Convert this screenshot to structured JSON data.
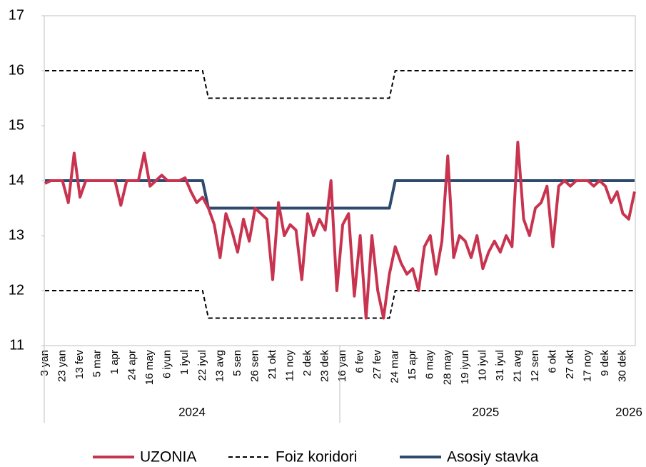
{
  "chart_data": {
    "type": "line",
    "categories": [
      "3 yan",
      null,
      null,
      "23 yan",
      null,
      null,
      "13 fev",
      null,
      null,
      "5 mar",
      null,
      null,
      "1 apr",
      null,
      null,
      "24 apr",
      null,
      null,
      "16 may",
      null,
      null,
      "6 iyun",
      null,
      null,
      "1 iyul",
      null,
      null,
      "22 iyul",
      null,
      null,
      "13 avg",
      null,
      null,
      "5 sen",
      null,
      null,
      "26 sen",
      null,
      null,
      "21 okt",
      null,
      null,
      "11 noy",
      null,
      null,
      "2 dek",
      null,
      null,
      "23 dek",
      null,
      null,
      "16 yan",
      null,
      null,
      "6 fev",
      null,
      null,
      "27 fev",
      null,
      null,
      "24 mar",
      null,
      null,
      "15 apr",
      null,
      null,
      "6 may",
      null,
      null,
      "28 may",
      null,
      null,
      "19 iyun",
      null,
      null,
      "10 iyul",
      null,
      null,
      "31 iyul",
      null,
      null,
      "21 avg",
      null,
      null,
      "12 sen",
      null,
      null,
      "6 okt",
      null,
      null,
      "27 okt",
      null,
      null,
      "17 noy",
      null,
      null,
      "9 dek",
      null,
      null,
      "30 dek",
      null,
      null
    ],
    "groups": [
      {
        "label": "2024",
        "start": 0,
        "end": 50
      },
      {
        "label": "2025",
        "start": 51,
        "end": 100
      },
      {
        "label": "2026",
        "start": 101,
        "end": 101
      }
    ],
    "series": [
      {
        "name": "UZONIA",
        "color": "#c8334f",
        "width": 4,
        "dash": false,
        "values": [
          13.95,
          14,
          14,
          14,
          13.6,
          14.5,
          13.7,
          14,
          14,
          14,
          14,
          14,
          14,
          13.55,
          14,
          14,
          14,
          14.5,
          13.9,
          14,
          14.1,
          14,
          14,
          14,
          14.05,
          13.8,
          13.6,
          13.7,
          13.5,
          13.2,
          12.6,
          13.4,
          13.1,
          12.7,
          13.3,
          12.9,
          13.5,
          13.4,
          13.3,
          12.2,
          13.6,
          13.0,
          13.2,
          13.1,
          12.2,
          13.4,
          13.0,
          13.3,
          13.1,
          14.0,
          12.0,
          13.2,
          13.4,
          11.9,
          13.0,
          11.5,
          13.0,
          12.0,
          11.5,
          12.3,
          12.8,
          12.5,
          12.3,
          12.4,
          12.0,
          12.8,
          13.0,
          12.3,
          12.9,
          14.45,
          12.6,
          13.0,
          12.9,
          12.6,
          13.0,
          12.4,
          12.7,
          12.9,
          12.7,
          13.0,
          12.8,
          14.7,
          13.3,
          13.0,
          13.5,
          13.6,
          13.9,
          12.8,
          13.9,
          14.0,
          13.9,
          14,
          14,
          14,
          13.9,
          14,
          13.9,
          13.6,
          13.8,
          13.4,
          13.3,
          13.8
        ]
      },
      {
        "name": "Foiz koridori",
        "color": "#000000",
        "width": 2,
        "dash": true,
        "values": [
          16,
          16,
          16,
          16,
          16,
          16,
          16,
          16,
          16,
          16,
          16,
          16,
          16,
          16,
          16,
          16,
          16,
          16,
          16,
          16,
          16,
          16,
          16,
          16,
          16,
          16,
          16,
          16,
          15.5,
          15.5,
          15.5,
          15.5,
          15.5,
          15.5,
          15.5,
          15.5,
          15.5,
          15.5,
          15.5,
          15.5,
          15.5,
          15.5,
          15.5,
          15.5,
          15.5,
          15.5,
          15.5,
          15.5,
          15.5,
          15.5,
          15.5,
          15.5,
          15.5,
          15.5,
          15.5,
          15.5,
          15.5,
          15.5,
          15.5,
          15.5,
          16,
          16,
          16,
          16,
          16,
          16,
          16,
          16,
          16,
          16,
          16,
          16,
          16,
          16,
          16,
          16,
          16,
          16,
          16,
          16,
          16,
          16,
          16,
          16,
          16,
          16,
          16,
          16,
          16,
          16,
          16,
          16,
          16,
          16,
          16,
          16,
          16,
          16,
          16,
          16,
          16,
          16
        ]
      },
      {
        "name": "Foiz koridori",
        "color": "#000000",
        "width": 2,
        "dash": true,
        "values": [
          12,
          12,
          12,
          12,
          12,
          12,
          12,
          12,
          12,
          12,
          12,
          12,
          12,
          12,
          12,
          12,
          12,
          12,
          12,
          12,
          12,
          12,
          12,
          12,
          12,
          12,
          12,
          12,
          11.5,
          11.5,
          11.5,
          11.5,
          11.5,
          11.5,
          11.5,
          11.5,
          11.5,
          11.5,
          11.5,
          11.5,
          11.5,
          11.5,
          11.5,
          11.5,
          11.5,
          11.5,
          11.5,
          11.5,
          11.5,
          11.5,
          11.5,
          11.5,
          11.5,
          11.5,
          11.5,
          11.5,
          11.5,
          11.5,
          11.5,
          11.5,
          12,
          12,
          12,
          12,
          12,
          12,
          12,
          12,
          12,
          12,
          12,
          12,
          12,
          12,
          12,
          12,
          12,
          12,
          12,
          12,
          12,
          12,
          12,
          12,
          12,
          12,
          12,
          12,
          12,
          12,
          12,
          12,
          12,
          12,
          12,
          12,
          12,
          12,
          12,
          12,
          12,
          12
        ]
      },
      {
        "name": "Asosiy stavka",
        "color": "#2e4a6e",
        "width": 4,
        "dash": false,
        "values": [
          14,
          14,
          14,
          14,
          14,
          14,
          14,
          14,
          14,
          14,
          14,
          14,
          14,
          14,
          14,
          14,
          14,
          14,
          14,
          14,
          14,
          14,
          14,
          14,
          14,
          14,
          14,
          14,
          13.5,
          13.5,
          13.5,
          13.5,
          13.5,
          13.5,
          13.5,
          13.5,
          13.5,
          13.5,
          13.5,
          13.5,
          13.5,
          13.5,
          13.5,
          13.5,
          13.5,
          13.5,
          13.5,
          13.5,
          13.5,
          13.5,
          13.5,
          13.5,
          13.5,
          13.5,
          13.5,
          13.5,
          13.5,
          13.5,
          13.5,
          13.5,
          14,
          14,
          14,
          14,
          14,
          14,
          14,
          14,
          14,
          14,
          14,
          14,
          14,
          14,
          14,
          14,
          14,
          14,
          14,
          14,
          14,
          14,
          14,
          14,
          14,
          14,
          14,
          14,
          14,
          14,
          14,
          14,
          14,
          14,
          14,
          14,
          14,
          14,
          14,
          14,
          14,
          14
        ]
      }
    ],
    "ylim": [
      11,
      17
    ],
    "yticks": [
      11,
      12,
      13,
      14,
      15,
      16,
      17
    ],
    "grid": false
  }
}
